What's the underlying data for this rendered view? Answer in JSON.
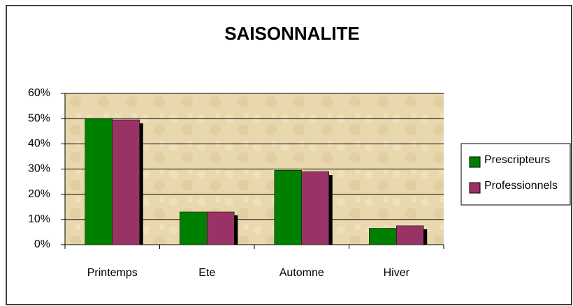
{
  "chart_data": {
    "type": "bar",
    "title": "SAISONNALITE",
    "categories": [
      "Printemps",
      "Ete",
      "Automne",
      "Hiver"
    ],
    "series": [
      {
        "name": "Prescripteurs",
        "color": "#008000",
        "values": [
          50,
          13,
          29.5,
          6.5
        ]
      },
      {
        "name": "Professionnels",
        "color": "#993366",
        "values": [
          49.5,
          13,
          29,
          7.5
        ]
      }
    ],
    "ylim": [
      0,
      60
    ],
    "yticks": [
      {
        "value": 0,
        "label": "0%"
      },
      {
        "value": 10,
        "label": "10%"
      },
      {
        "value": 20,
        "label": "20%"
      },
      {
        "value": 30,
        "label": "30%"
      },
      {
        "value": 40,
        "label": "40%"
      },
      {
        "value": 50,
        "label": "50%"
      },
      {
        "value": 60,
        "label": "60%"
      }
    ],
    "grid": true,
    "legend": "right"
  }
}
